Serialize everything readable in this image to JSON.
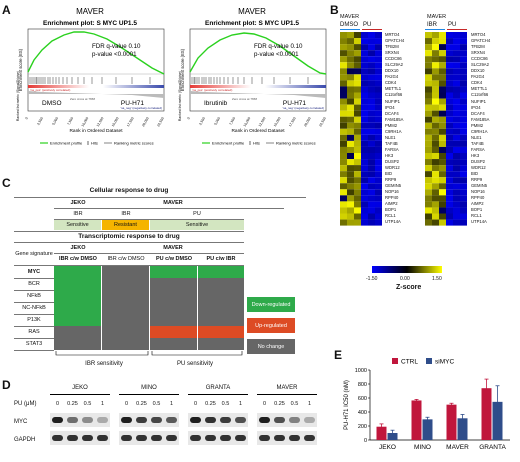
{
  "panels": {
    "A": "A",
    "B": "B",
    "C": "C",
    "D": "D",
    "E": "E"
  },
  "gsea": [
    {
      "title": "MAVER",
      "subtitle": "Enrichment plot: S MYC UP1.5",
      "fdr": "FDR q-value 0.10",
      "p": "p-value <0.0001",
      "left": "DMSO",
      "right": "PU-H71",
      "ylabel": "Enrichment score (ES)",
      "ylabel2": "Ranked list metric (Signal2Noise)",
      "xlabel": "Rank in Ordered Dataset",
      "zero": "Zero cross at 7658",
      "pos": "'na_pos' (positively correlated)",
      "neg": "'na_neg' (negatively correlated)"
    },
    {
      "title": "MAVER",
      "subtitle": "Enrichment plot: S MYC UP1.5",
      "fdr": "FDR q-value 0.10",
      "p": "p-value <0.0001",
      "left": "Ibrutinib",
      "right": "PU-H71",
      "ylabel": "Enrichment score (ES)",
      "ylabel2": "Ranked list metric (Signal2Noise)",
      "xlabel": "Rank in Ordered Dataset",
      "zero": "Zero cross at 7658",
      "pos": "'na_pos' (positively correlated)",
      "neg": "'na_neg' (negatively correlated)"
    }
  ],
  "gsea_legend": [
    "Enrichment profile",
    "Hits",
    "Ranking metric scores"
  ],
  "x_ticks": [
    "0",
    "2,500",
    "5,000",
    "7,500",
    "10,000",
    "12,500",
    "15,000",
    "17,500",
    "20,000",
    "22,500"
  ],
  "heatmap": {
    "blocks": [
      {
        "cell": "MAVER",
        "left": "DMSO",
        "right": "PU"
      },
      {
        "cell": "MAVER",
        "left": "IBR",
        "right": "PU"
      }
    ],
    "genes": [
      "MRTO4",
      "GPATCH4",
      "TFB2M",
      "SRXN4",
      "CCDC86",
      "SLC29A2",
      "DDX10",
      "PA2G4",
      "CDK4",
      "METTL1",
      "C12orf66",
      "NUFIP1",
      "IPO4",
      "DCAF4",
      "FAM185A",
      "PMM2",
      "C9RH1A",
      "NLE1",
      "TAF4B",
      "FARSA",
      "HK3",
      "DUSP2",
      "WDR12",
      "BID",
      "RRP9",
      "GEMIN5",
      "NOP16",
      "RPP40",
      "AIMP2",
      "BOP1",
      "RCL1",
      "UTP14A"
    ],
    "scale": {
      "min": "-1.50",
      "mid": "0.00",
      "max": "1.50",
      "label": "Z-score"
    }
  },
  "panelC": {
    "cellular_title": "Cellular response to drug",
    "transcriptomic_title": "Transcriptomic response to drug",
    "jeko": "JEKO",
    "maver": "MAVER",
    "ibr": "IBR",
    "pu": "PU",
    "sensitive": "Sensitive",
    "resistant": "Resistant",
    "sensitive2": "Sensitive",
    "gene_signature": "Gene signature",
    "col1": "IBR c/w DMSO",
    "col2": "IBR c/w DMSO",
    "col3": "PU c/w DMSO",
    "col4": "PU c/w IBR",
    "rows": [
      "MYC",
      "BCR",
      "NFkB",
      "NC-NFkB",
      "P13K",
      "RAS",
      "STAT3"
    ],
    "legend": [
      "Down-regulated",
      "Up-regulated",
      "No change"
    ],
    "foot_left": "IBR sensitivity",
    "foot_right": "PU sensitivity"
  },
  "panelD": {
    "pu_label": "PU (μM)",
    "cells": [
      "JEKO",
      "MINO",
      "GRANTA",
      "MAVER"
    ],
    "doses": [
      "0",
      "0.25",
      "0.5",
      "1"
    ],
    "rows": [
      "MYC",
      "GAPDH"
    ]
  },
  "panelE": {
    "legend": [
      "CTRL",
      "siMYC"
    ],
    "ylabel": "PU-H71 IC50 (nM)",
    "yticks": [
      "0",
      "200",
      "400",
      "600",
      "800",
      "1000"
    ]
  },
  "chart_data": {
    "type": "bar",
    "categories": [
      "JEKO",
      "MINO",
      "MAVER",
      "GRANTA"
    ],
    "series": [
      {
        "name": "CTRL",
        "values": [
          190,
          565,
          505,
          740
        ]
      },
      {
        "name": "siMYC",
        "values": [
          100,
          295,
          310,
          545
        ]
      }
    ],
    "errors": [
      [
        40,
        15,
        20,
        130
      ],
      [
        40,
        30,
        55,
        230
      ]
    ],
    "ylabel": "PU-H71 IC50 (nM)",
    "ylim": [
      0,
      1000
    ],
    "colors": [
      "#c0163c",
      "#2f4d8a"
    ]
  }
}
